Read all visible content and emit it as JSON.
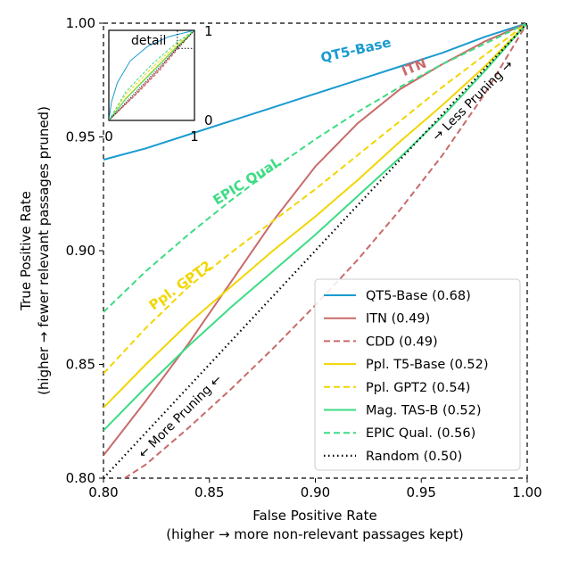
{
  "chart_data": {
    "type": "line",
    "title": "",
    "xlabel": "False Positive Rate",
    "xlabel_sub": "(higher → more non-relevant passages kept)",
    "ylabel": "True Positive Rate",
    "ylabel_sub": "(higher → fewer relevant passages pruned)",
    "xlim": [
      0.8,
      1.0
    ],
    "ylim": [
      0.8,
      1.0
    ],
    "xticks": [
      "0.80",
      "0.85",
      "0.90",
      "0.95",
      "1.00"
    ],
    "yticks": [
      "0.80",
      "0.85",
      "0.90",
      "0.95",
      "1.00"
    ],
    "xtick_values": [
      0.8,
      0.85,
      0.9,
      0.95,
      1.0
    ],
    "ytick_values": [
      0.8,
      0.85,
      0.9,
      0.95,
      1.0
    ],
    "legend_position": "lower-right",
    "series": [
      {
        "name": "QT5-Base",
        "auc": "(0.68)",
        "color": "#1a9bd0",
        "style": "solid",
        "x": [
          0.8,
          0.82,
          0.84,
          0.86,
          0.88,
          0.9,
          0.92,
          0.94,
          0.96,
          0.98,
          1.0
        ],
        "y": [
          0.94,
          0.945,
          0.951,
          0.957,
          0.963,
          0.969,
          0.975,
          0.981,
          0.987,
          0.994,
          1.0
        ]
      },
      {
        "name": "ITN",
        "auc": "(0.49)",
        "color": "#c96a6a",
        "style": "solid",
        "x": [
          0.8,
          0.82,
          0.84,
          0.86,
          0.88,
          0.9,
          0.92,
          0.94,
          0.96,
          0.98,
          1.0
        ],
        "y": [
          0.81,
          0.834,
          0.859,
          0.886,
          0.913,
          0.937,
          0.956,
          0.971,
          0.982,
          0.992,
          1.0
        ]
      },
      {
        "name": "CDD",
        "auc": "(0.49)",
        "color": "#c96a6a",
        "style": "dashed",
        "x": [
          0.81,
          0.82,
          0.84,
          0.86,
          0.88,
          0.9,
          0.92,
          0.94,
          0.96,
          0.98,
          1.0
        ],
        "y": [
          0.8,
          0.806,
          0.822,
          0.839,
          0.857,
          0.876,
          0.896,
          0.918,
          0.942,
          0.969,
          1.0
        ]
      },
      {
        "name": "Ppl. T5-Base",
        "auc": "(0.52)",
        "color": "#f2d600",
        "style": "solid",
        "x": [
          0.8,
          0.82,
          0.84,
          0.86,
          0.88,
          0.9,
          0.92,
          0.94,
          0.96,
          0.98,
          1.0
        ],
        "y": [
          0.831,
          0.85,
          0.868,
          0.884,
          0.9,
          0.915,
          0.931,
          0.948,
          0.964,
          0.981,
          1.0
        ]
      },
      {
        "name": "Ppl. GPT2",
        "auc": "(0.54)",
        "color": "#f2d600",
        "style": "dashed",
        "x": [
          0.8,
          0.82,
          0.84,
          0.86,
          0.88,
          0.9,
          0.92,
          0.94,
          0.96,
          0.98,
          1.0
        ],
        "y": [
          0.846,
          0.866,
          0.884,
          0.899,
          0.913,
          0.927,
          0.942,
          0.957,
          0.972,
          0.986,
          1.0
        ]
      },
      {
        "name": "Mag. TAS-B",
        "auc": "(0.52)",
        "color": "#3ddc84",
        "style": "solid",
        "x": [
          0.8,
          0.82,
          0.84,
          0.86,
          0.88,
          0.9,
          0.92,
          0.94,
          0.96,
          0.98,
          1.0
        ],
        "y": [
          0.821,
          0.84,
          0.858,
          0.875,
          0.891,
          0.907,
          0.924,
          0.941,
          0.959,
          0.979,
          1.0
        ]
      },
      {
        "name": "EPIC Qual.",
        "auc": "(0.56)",
        "color": "#3ddc84",
        "style": "dashed",
        "x": [
          0.8,
          0.82,
          0.84,
          0.86,
          0.88,
          0.9,
          0.92,
          0.94,
          0.96,
          0.98,
          1.0
        ],
        "y": [
          0.873,
          0.891,
          0.907,
          0.922,
          0.936,
          0.949,
          0.961,
          0.972,
          0.982,
          0.991,
          1.0
        ]
      },
      {
        "name": "Random",
        "auc": "(0.50)",
        "color": "#000000",
        "style": "dotted",
        "x": [
          0.8,
          1.0
        ],
        "y": [
          0.8,
          1.0
        ]
      }
    ],
    "annotations": {
      "qt5": "QT5-Base",
      "itn": "ITN",
      "epic": "EPIC Qual.",
      "gpt2": "Ppl. GPT2",
      "less_pruning": "→ Less Pruning →",
      "more_pruning": "← More Pruning ←"
    },
    "inset": {
      "label": "detail",
      "xticks": [
        "0",
        "1"
      ],
      "yticks": [
        "0",
        "1"
      ],
      "xlim": [
        0,
        1
      ],
      "ylim": [
        0,
        1
      ],
      "detail_box": [
        0.8,
        1.0,
        0.8,
        1.0
      ]
    }
  }
}
